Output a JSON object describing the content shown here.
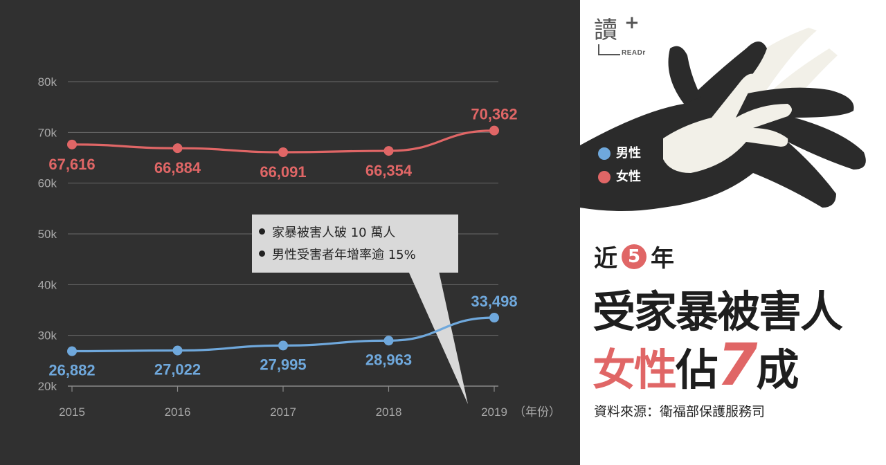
{
  "chart_data": {
    "type": "line",
    "x": [
      2015,
      2016,
      2017,
      2018,
      2019
    ],
    "x_tick_labels": [
      "2015",
      "2016",
      "2017",
      "2018",
      "2019"
    ],
    "x_unit": "（年份）",
    "y_ticks": [
      "20k",
      "30k",
      "40k",
      "50k",
      "60k",
      "70k",
      "80k"
    ],
    "ylim": [
      20000,
      80000
    ],
    "grid": true,
    "series": [
      {
        "name": "女性",
        "color": "#e06666",
        "values": [
          67616,
          66884,
          66091,
          66354,
          70362
        ],
        "labels": [
          "67,616",
          "66,884",
          "66,091",
          "66,354",
          "70,362"
        ]
      },
      {
        "name": "男性",
        "color": "#6fa8dc",
        "values": [
          26882,
          27022,
          27995,
          28963,
          33498
        ],
        "labels": [
          "26,882",
          "27,022",
          "27,995",
          "28,963",
          "33,498"
        ]
      }
    ],
    "annotations": [
      "家暴被害人破 10 萬人",
      "男性受害者年增率逾 15%"
    ]
  },
  "callout": {
    "items": [
      "家暴被害人破 10 萬人",
      "男性受害者年增率逾 15%"
    ]
  },
  "legend": {
    "male": {
      "label": "男性",
      "color": "#6fa8dc"
    },
    "female": {
      "label": "女性",
      "color": "#e06666"
    }
  },
  "logo": {
    "mark": "讀",
    "plus": "+",
    "text": "READr"
  },
  "headline": {
    "line1_pre": "近",
    "line1_num": "5",
    "line1_post": "年",
    "line2": "受家暴被害人",
    "line3_a": "女性",
    "line3_b": "佔",
    "line3_c": "7",
    "line3_d": "成"
  },
  "source": "資料來源：衛福部保護服務司",
  "colors": {
    "background_dark": "#303030",
    "accent_red": "#e06666",
    "accent_blue": "#6fa8dc"
  }
}
